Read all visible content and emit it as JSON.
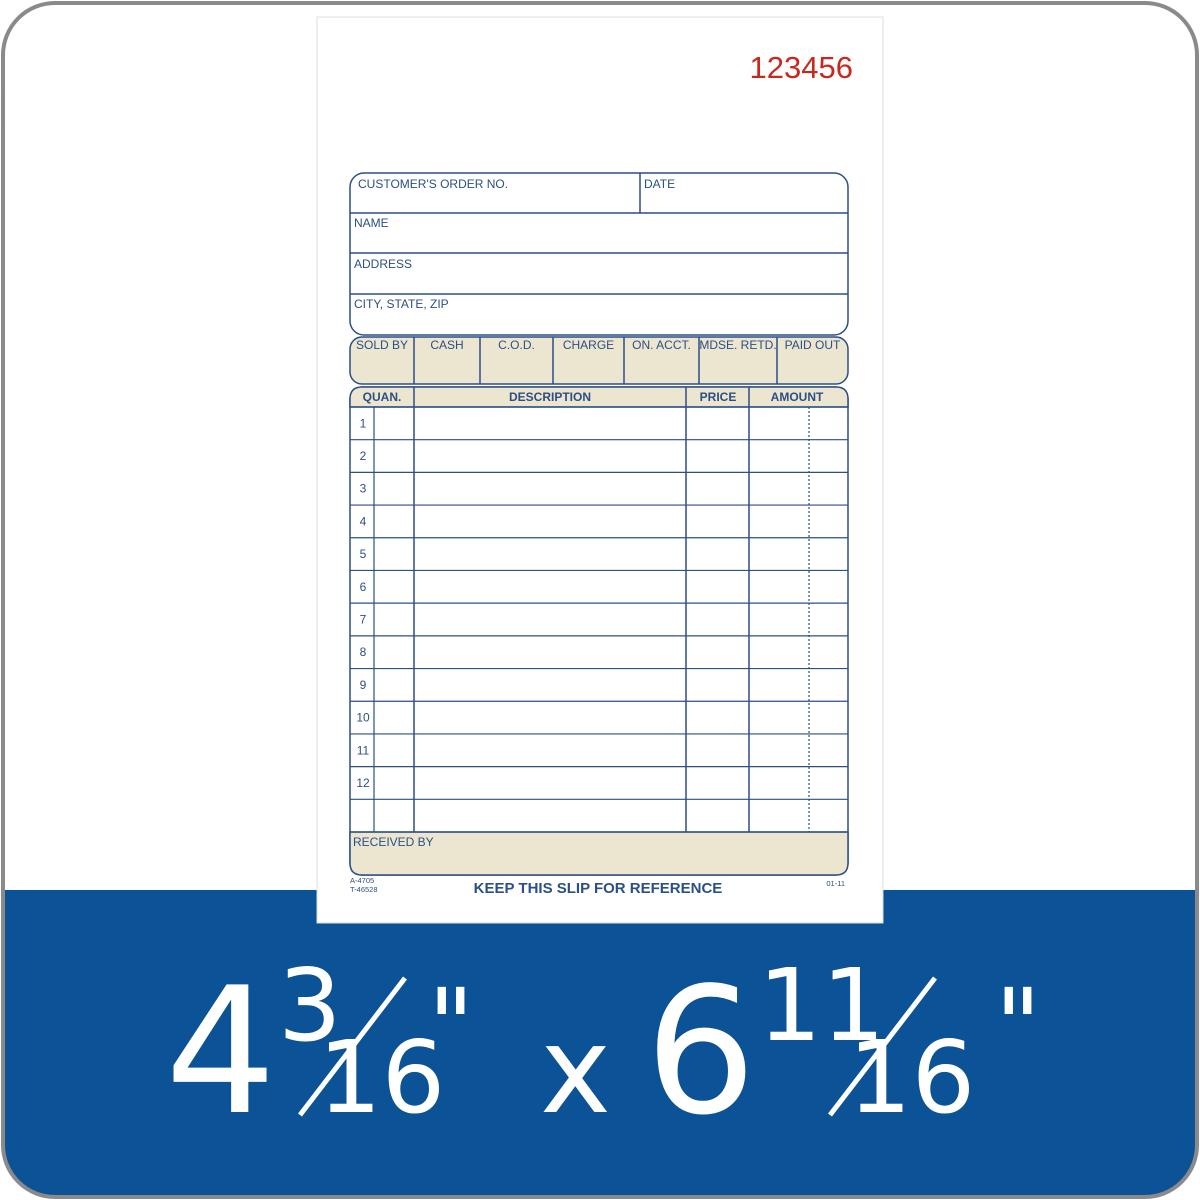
{
  "serial": "123456",
  "header_fields": {
    "order_no": "CUSTOMER'S ORDER NO.",
    "date": "DATE",
    "name": "NAME",
    "address": "ADDRESS",
    "city": "CITY, STATE, ZIP"
  },
  "payment": [
    "SOLD BY",
    "CASH",
    "C.O.D.",
    "CHARGE",
    "ON. ACCT.",
    "MDSE. RETD.",
    "PAID OUT"
  ],
  "table": {
    "columns": [
      "QUAN.",
      "DESCRIPTION",
      "PRICE",
      "AMOUNT"
    ],
    "rows": [
      "1",
      "2",
      "3",
      "4",
      "5",
      "6",
      "7",
      "8",
      "9",
      "10",
      "11",
      "12"
    ]
  },
  "received_by": "RECEIVED BY",
  "footer": {
    "codes": [
      "A-4705",
      "T-46528"
    ],
    "note": "KEEP THIS SLIP FOR REFERENCE",
    "revision": "01-11"
  },
  "size": {
    "width": {
      "whole": "4",
      "numerator": "3",
      "denominator": "16",
      "unit": "\""
    },
    "separator": "x",
    "height": {
      "whole": "6",
      "numerator": "11",
      "denominator": "16",
      "unit": "\""
    }
  }
}
